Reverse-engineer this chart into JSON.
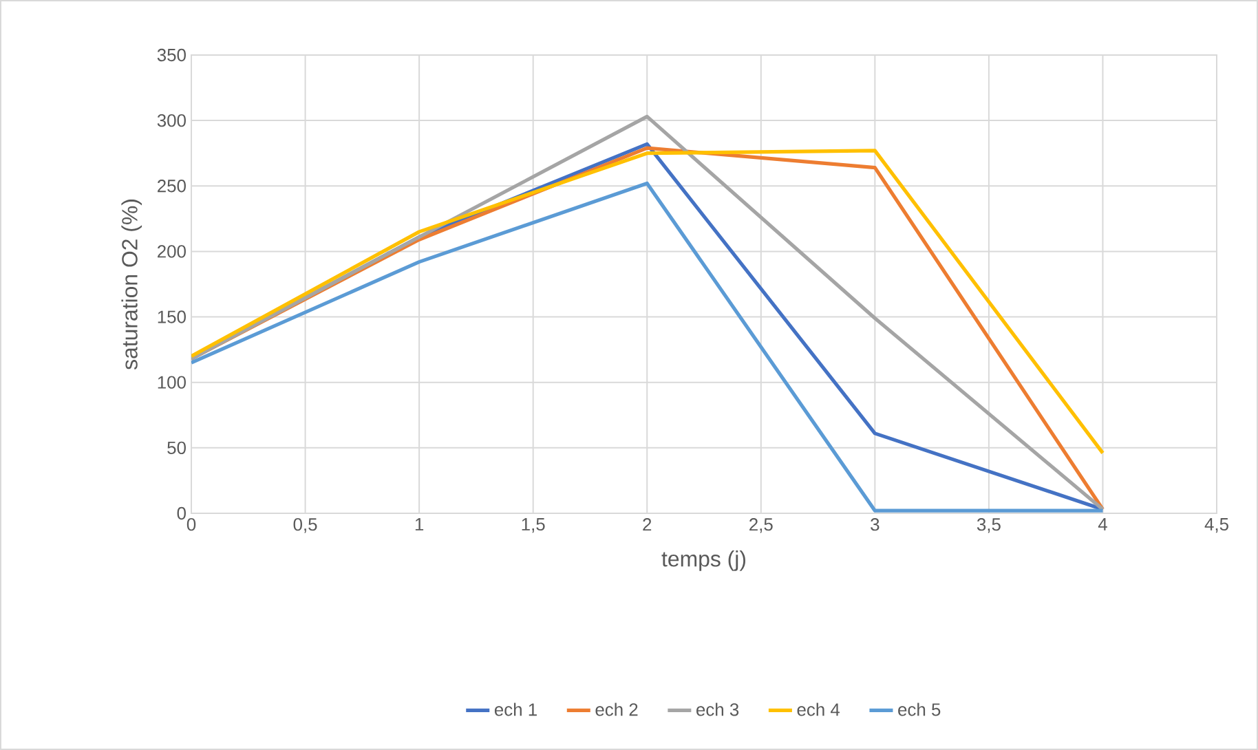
{
  "chart_data": {
    "type": "line",
    "xlabel": "temps (j)",
    "ylabel": "saturation O2 (%)",
    "x": [
      0,
      1,
      2,
      3,
      4
    ],
    "series": [
      {
        "name": "ech 1",
        "color": "#4472c4",
        "values": [
          118,
          211,
          282,
          61,
          3
        ]
      },
      {
        "name": "ech 2",
        "color": "#ed7d31",
        "values": [
          118,
          209,
          279,
          264,
          3
        ]
      },
      {
        "name": "ech 3",
        "color": "#a5a5a5",
        "values": [
          118,
          211,
          303,
          149,
          3
        ]
      },
      {
        "name": "ech 4",
        "color": "#ffc000",
        "values": [
          120,
          215,
          275,
          277,
          46
        ]
      },
      {
        "name": "ech 5",
        "color": "#5b9bd5",
        "values": [
          115,
          192,
          252,
          2,
          2
        ]
      }
    ],
    "xlim": [
      0,
      4.5
    ],
    "xticks": [
      0,
      {
        "value": 0.5,
        "label": "0,5"
      },
      1,
      {
        "value": 1.5,
        "label": "1,5"
      },
      2,
      {
        "value": 2.5,
        "label": "2,5"
      },
      3,
      {
        "value": 3.5,
        "label": "3,5"
      },
      4,
      {
        "value": 4.5,
        "label": "4,5"
      }
    ],
    "ylim": [
      0,
      350
    ],
    "yticks": [
      0,
      50,
      100,
      150,
      200,
      250,
      300,
      350
    ],
    "grid": true,
    "legend": "bottom",
    "marker": "none",
    "line_style": "solid"
  }
}
